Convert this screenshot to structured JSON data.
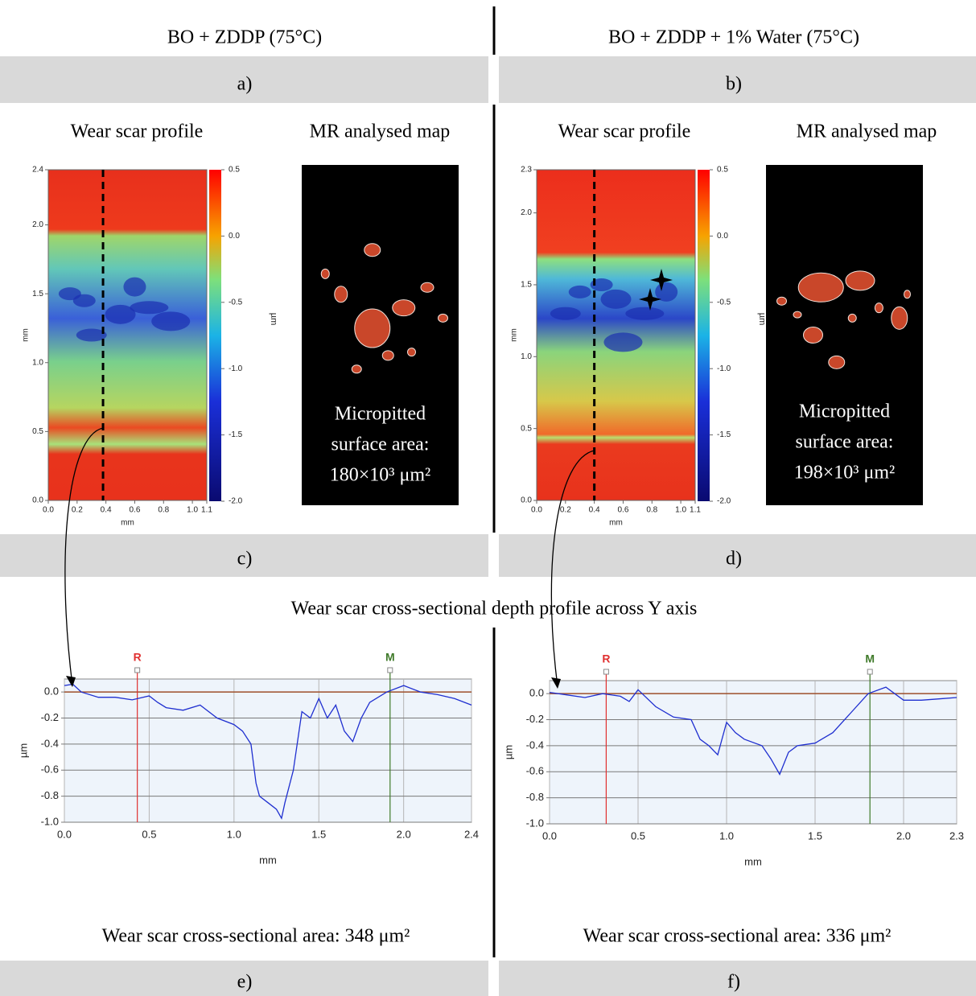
{
  "section_title": "Wear scar cross-sectional depth profile across Y axis",
  "left": {
    "title": "BO + ZDDP (75°C)",
    "label_top": "a)",
    "profile_title": "Wear scar profile",
    "map_title": "MR analysed map",
    "label_mid": "c)",
    "map_text": [
      "Micropitted",
      "surface area:",
      "180×10³ μm²"
    ],
    "heatmap": {
      "xlabel": "mm",
      "ylabel": "mm",
      "xlim": [
        0,
        1.1
      ],
      "ylim": [
        0,
        2.4
      ],
      "section_x": 0.38,
      "xticks": [
        {
          "value": 0,
          "label": "0.0"
        },
        0.2,
        0.4,
        0.6,
        0.8,
        {
          "value": 1,
          "label": "1.0"
        },
        1.1
      ],
      "yticks": [
        {
          "value": 0,
          "label": "0.0"
        },
        0.5,
        {
          "value": 1,
          "label": "1.0"
        },
        1.5,
        {
          "value": 2,
          "label": "2.0"
        },
        2.4
      ]
    },
    "colorbar": {
      "label": "µm",
      "ylim": [
        -2,
        0.5
      ],
      "ticks": [
        0.5,
        {
          "value": 0,
          "label": "0.0"
        },
        -0.5,
        {
          "value": -1,
          "label": "-1.0"
        },
        -1.5,
        {
          "value": -2,
          "label": "-2.0"
        }
      ]
    },
    "profile": {
      "xlabel": "mm",
      "ylabel": "µm",
      "xlim": [
        0,
        2.4
      ],
      "ylim": [
        -1,
        0.1
      ],
      "xticks": [
        {
          "value": 0,
          "label": "0.0"
        },
        0.5,
        {
          "value": 1,
          "label": "1.0"
        },
        1.5,
        {
          "value": 2,
          "label": "2.0"
        },
        2.4
      ],
      "yticks": [
        {
          "value": 0,
          "label": "0.0"
        },
        -0.2,
        -0.4,
        -0.6,
        -0.8,
        {
          "value": -1,
          "label": "-1.0"
        }
      ],
      "cursors": [
        {
          "label": "R",
          "x": 0.43,
          "color": "#e03030"
        },
        {
          "label": "M",
          "x": 1.92,
          "color": "#3f7a2a"
        }
      ],
      "color": "#1f2fd0",
      "x": [
        0,
        0.05,
        0.1,
        0.2,
        0.3,
        0.4,
        0.5,
        0.55,
        0.6,
        0.7,
        0.8,
        0.9,
        1.0,
        1.05,
        1.1,
        1.13,
        1.15,
        1.2,
        1.25,
        1.28,
        1.3,
        1.35,
        1.4,
        1.45,
        1.5,
        1.55,
        1.6,
        1.65,
        1.7,
        1.75,
        1.8,
        1.9,
        2.0,
        2.1,
        2.2,
        2.3,
        2.4
      ],
      "values": [
        0.05,
        0.06,
        0.0,
        -0.04,
        -0.04,
        -0.06,
        -0.03,
        -0.08,
        -0.12,
        -0.14,
        -0.1,
        -0.2,
        -0.25,
        -0.3,
        -0.4,
        -0.7,
        -0.8,
        -0.85,
        -0.9,
        -0.97,
        -0.85,
        -0.6,
        -0.15,
        -0.2,
        -0.05,
        -0.2,
        -0.1,
        -0.3,
        -0.38,
        -0.2,
        -0.08,
        0.0,
        0.05,
        0.0,
        -0.02,
        -0.05,
        -0.1
      ]
    },
    "area_text": "Wear scar cross-sectional area: 348 μm²",
    "label_bottom": "e)"
  },
  "right": {
    "title": "BO + ZDDP + 1% Water (75°C)",
    "label_top": "b)",
    "profile_title": "Wear scar profile",
    "map_title": "MR analysed map",
    "label_mid": "d)",
    "map_text": [
      "Micropitted",
      "surface area:",
      "198×10³ μm²"
    ],
    "heatmap": {
      "xlabel": "mm",
      "ylabel": "mm",
      "xlim": [
        0,
        1.1
      ],
      "ylim": [
        0,
        2.3
      ],
      "section_x": 0.4,
      "xticks": [
        {
          "value": 0,
          "label": "0.0"
        },
        0.2,
        0.4,
        0.6,
        0.8,
        {
          "value": 1,
          "label": "1.0"
        },
        1.1
      ],
      "yticks": [
        {
          "value": 0,
          "label": "0.0"
        },
        0.5,
        {
          "value": 1,
          "label": "1.0"
        },
        1.5,
        {
          "value": 2,
          "label": "2.0"
        },
        2.3
      ]
    },
    "colorbar": {
      "label": "µm",
      "ylim": [
        -2,
        0.5
      ],
      "ticks": [
        0.5,
        {
          "value": 0,
          "label": "0.0"
        },
        -0.5,
        {
          "value": -1,
          "label": "-1.0"
        },
        -1.5,
        {
          "value": -2,
          "label": "-2.0"
        }
      ]
    },
    "profile": {
      "xlabel": "mm",
      "ylabel": "µm",
      "xlim": [
        0,
        2.3
      ],
      "ylim": [
        -1,
        0.1
      ],
      "xticks": [
        {
          "value": 0,
          "label": "0.0"
        },
        0.5,
        {
          "value": 1,
          "label": "1.0"
        },
        1.5,
        {
          "value": 2,
          "label": "2.0"
        },
        2.3
      ],
      "yticks": [
        {
          "value": 0,
          "label": "0.0"
        },
        -0.2,
        -0.4,
        -0.6,
        -0.8,
        {
          "value": -1,
          "label": "-1.0"
        }
      ],
      "cursors": [
        {
          "label": "R",
          "x": 0.32,
          "color": "#e03030"
        },
        {
          "label": "M",
          "x": 1.81,
          "color": "#3f7a2a"
        }
      ],
      "color": "#1f2fd0",
      "x": [
        0,
        0.1,
        0.2,
        0.3,
        0.4,
        0.45,
        0.5,
        0.6,
        0.7,
        0.8,
        0.85,
        0.9,
        0.95,
        1.0,
        1.05,
        1.1,
        1.2,
        1.25,
        1.3,
        1.35,
        1.4,
        1.5,
        1.6,
        1.7,
        1.8,
        1.9,
        2.0,
        2.1,
        2.2,
        2.3
      ],
      "values": [
        0.01,
        -0.01,
        -0.03,
        0.0,
        -0.02,
        -0.06,
        0.03,
        -0.1,
        -0.18,
        -0.2,
        -0.35,
        -0.4,
        -0.47,
        -0.22,
        -0.3,
        -0.35,
        -0.4,
        -0.5,
        -0.62,
        -0.45,
        -0.4,
        -0.38,
        -0.3,
        -0.15,
        0.0,
        0.05,
        -0.05,
        -0.05,
        -0.04,
        -0.03
      ]
    },
    "area_text": "Wear scar cross-sectional area: 336 μm²",
    "label_bottom": "f)"
  }
}
